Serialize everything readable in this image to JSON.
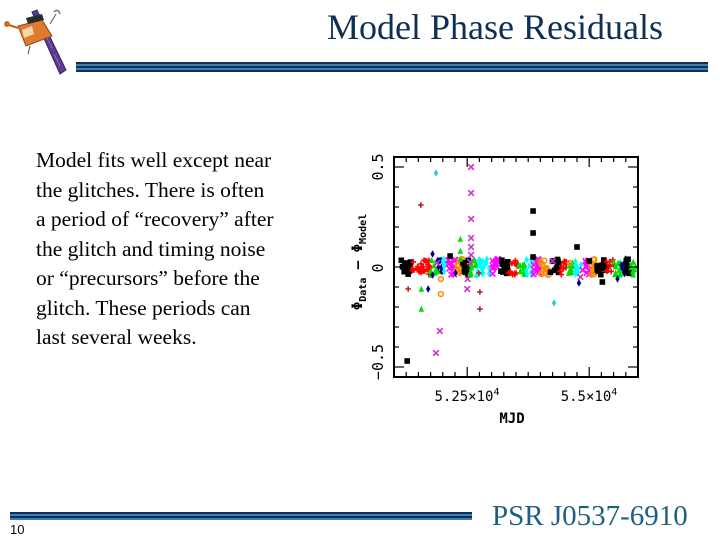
{
  "slide": {
    "title": "Model Phase Residuals",
    "logo_icon": "satellite-icon",
    "body": [
      "Model fits well except near",
      "the glitches. There is often",
      "a period of “recovery” after",
      "the glitch and timing noise",
      "or “precursors” before the",
      "glitch. These periods can",
      "last several weeks."
    ],
    "footer_title": "PSR J0537-6910",
    "page_number": "10",
    "colors": {
      "title": "#0f2f55",
      "footer_title": "#1f5f7f",
      "rule_dark": "#0f2f55",
      "rule_light": "#3a7fb5"
    }
  },
  "chart_data": {
    "type": "scatter",
    "title": "",
    "xlabel": "MJD",
    "ylabel": "Φ_Data − Φ_Model",
    "xlim": [
      51000,
      56000
    ],
    "ylim": [
      -0.55,
      0.55
    ],
    "x_ticks": [
      {
        "value": 52500,
        "label": "5.25×10^4"
      },
      {
        "value": 55000,
        "label": "5.5×10^4"
      }
    ],
    "y_ticks": [
      {
        "value": -0.5,
        "label": "−0.5"
      },
      {
        "value": 0,
        "label": "0"
      },
      {
        "value": 0.5,
        "label": "0.5"
      }
    ],
    "grid": false,
    "legend": null,
    "note": "Dense band of multi-colored residuals near 0 spanning MJD ~51150-55950; segments between glitches plotted in distinct colors/markers",
    "band": {
      "x_range": [
        51150,
        55950
      ],
      "y_center": 0.0,
      "y_spread": 0.04
    },
    "band_segments": [
      {
        "color": "#000000",
        "marker": "square",
        "x_range": [
          51150,
          51350
        ]
      },
      {
        "color": "#ff0000",
        "marker": "plus",
        "x_range": [
          51350,
          51750
        ]
      },
      {
        "color": "#00dd00",
        "marker": "triangle",
        "x_range": [
          51750,
          51900
        ]
      },
      {
        "color": "#00008b",
        "marker": "diamond",
        "x_range": [
          51900,
          52000
        ]
      },
      {
        "color": "#00ffff",
        "marker": "diamond",
        "x_range": [
          52000,
          52100
        ]
      },
      {
        "color": "#ff00ff",
        "marker": "x",
        "x_range": [
          52100,
          52250
        ]
      },
      {
        "color": "#ff8c00",
        "marker": "circle",
        "x_range": [
          52250,
          52400
        ]
      },
      {
        "color": "#000000",
        "marker": "square",
        "x_range": [
          52400,
          52550
        ]
      },
      {
        "color": "#00dd00",
        "marker": "triangle",
        "x_range": [
          52550,
          52700
        ]
      },
      {
        "color": "#00ffff",
        "marker": "diamond",
        "x_range": [
          52700,
          52950
        ]
      },
      {
        "color": "#ff00ff",
        "marker": "x",
        "x_range": [
          52950,
          53150
        ]
      },
      {
        "color": "#000000",
        "marker": "square",
        "x_range": [
          53150,
          53350
        ]
      },
      {
        "color": "#ff0000",
        "marker": "plus",
        "x_range": [
          53350,
          53550
        ]
      },
      {
        "color": "#00dd00",
        "marker": "triangle",
        "x_range": [
          53550,
          53700
        ]
      },
      {
        "color": "#00ffff",
        "marker": "diamond",
        "x_range": [
          53700,
          53850
        ]
      },
      {
        "color": "#ff00ff",
        "marker": "x",
        "x_range": [
          53850,
          54000
        ]
      },
      {
        "color": "#ff8c00",
        "marker": "circle",
        "x_range": [
          54000,
          54200
        ]
      },
      {
        "color": "#000000",
        "marker": "square",
        "x_range": [
          54200,
          54400
        ]
      },
      {
        "color": "#ff0000",
        "marker": "plus",
        "x_range": [
          54400,
          54550
        ]
      },
      {
        "color": "#00dd00",
        "marker": "triangle",
        "x_range": [
          54550,
          54700
        ]
      },
      {
        "color": "#00ffff",
        "marker": "diamond",
        "x_range": [
          54700,
          54850
        ]
      },
      {
        "color": "#ff00ff",
        "marker": "x",
        "x_range": [
          54850,
          55000
        ]
      },
      {
        "color": "#ff8c00",
        "marker": "circle",
        "x_range": [
          55000,
          55150
        ]
      },
      {
        "color": "#000000",
        "marker": "square",
        "x_range": [
          55150,
          55350
        ]
      },
      {
        "color": "#ff0000",
        "marker": "plus",
        "x_range": [
          55350,
          55500
        ]
      },
      {
        "color": "#00dd00",
        "marker": "triangle",
        "x_range": [
          55500,
          55650
        ]
      },
      {
        "color": "#00008b",
        "marker": "diamond",
        "x_range": [
          55650,
          55750
        ]
      },
      {
        "color": "#000000",
        "marker": "square",
        "x_range": [
          55750,
          55850
        ]
      },
      {
        "color": "#00dd00",
        "marker": "triangle",
        "x_range": [
          55850,
          55950
        ]
      }
    ],
    "outliers": [
      {
        "x": 51270,
        "y": -0.47,
        "color": "#000000",
        "marker": "square"
      },
      {
        "x": 51230,
        "y": -0.02,
        "color": "#000000",
        "marker": "square"
      },
      {
        "x": 51550,
        "y": 0.31,
        "color": "#b22222",
        "marker": "plus"
      },
      {
        "x": 51290,
        "y": -0.11,
        "color": "#b22222",
        "marker": "plus"
      },
      {
        "x": 51560,
        "y": -0.11,
        "color": "#00dd00",
        "marker": "triangle"
      },
      {
        "x": 51560,
        "y": -0.21,
        "color": "#00dd00",
        "marker": "triangle"
      },
      {
        "x": 51700,
        "y": -0.11,
        "color": "#00008b",
        "marker": "diamond"
      },
      {
        "x": 51790,
        "y": 0.065,
        "color": "#00008b",
        "marker": "diamond"
      },
      {
        "x": 51790,
        "y": -0.04,
        "color": "#00008b",
        "marker": "diamond"
      },
      {
        "x": 51860,
        "y": 0.47,
        "color": "#33cccc",
        "marker": "diamond"
      },
      {
        "x": 51940,
        "y": -0.32,
        "color": "#cc33cc",
        "marker": "x"
      },
      {
        "x": 51860,
        "y": -0.43,
        "color": "#cc33cc",
        "marker": "x"
      },
      {
        "x": 51880,
        "y": 0.02,
        "color": "#cc33cc",
        "marker": "x"
      },
      {
        "x": 51960,
        "y": -0.06,
        "color": "#ff8c00",
        "marker": "circle"
      },
      {
        "x": 51960,
        "y": -0.135,
        "color": "#ff8c00",
        "marker": "circle"
      },
      {
        "x": 52150,
        "y": 0.055,
        "color": "#000000",
        "marker": "square"
      },
      {
        "x": 52360,
        "y": 0.14,
        "color": "#00dd00",
        "marker": "triangle"
      },
      {
        "x": 52360,
        "y": 0.08,
        "color": "#00dd00",
        "marker": "triangle"
      },
      {
        "x": 52360,
        "y": 0.04,
        "color": "#00dd00",
        "marker": "triangle"
      },
      {
        "x": 52260,
        "y": -0.03,
        "color": "#00008b",
        "marker": "diamond"
      },
      {
        "x": 52580,
        "y": 0.5,
        "color": "#cc33cc",
        "marker": "x"
      },
      {
        "x": 52580,
        "y": 0.37,
        "color": "#cc33cc",
        "marker": "x"
      },
      {
        "x": 52580,
        "y": 0.24,
        "color": "#cc33cc",
        "marker": "x"
      },
      {
        "x": 52580,
        "y": 0.145,
        "color": "#cc33cc",
        "marker": "x"
      },
      {
        "x": 52580,
        "y": 0.1,
        "color": "#cc33cc",
        "marker": "x"
      },
      {
        "x": 52580,
        "y": 0.06,
        "color": "#cc33cc",
        "marker": "x"
      },
      {
        "x": 52560,
        "y": 0.025,
        "color": "#cc33cc",
        "marker": "x"
      },
      {
        "x": 52500,
        "y": -0.11,
        "color": "#cc33cc",
        "marker": "x"
      },
      {
        "x": 52510,
        "y": -0.06,
        "color": "#cc33cc",
        "marker": "x"
      },
      {
        "x": 52760,
        "y": -0.125,
        "color": "#b22222",
        "marker": "plus"
      },
      {
        "x": 52760,
        "y": -0.21,
        "color": "#b22222",
        "marker": "plus"
      },
      {
        "x": 52740,
        "y": -0.03,
        "color": "#b22222",
        "marker": "plus"
      },
      {
        "x": 53850,
        "y": 0.28,
        "color": "#000000",
        "marker": "square"
      },
      {
        "x": 53850,
        "y": 0.17,
        "color": "#000000",
        "marker": "square"
      },
      {
        "x": 53850,
        "y": 0.05,
        "color": "#000000",
        "marker": "square"
      },
      {
        "x": 54280,
        "y": -0.18,
        "color": "#33cccc",
        "marker": "diamond"
      },
      {
        "x": 54750,
        "y": 0.1,
        "color": "#000000",
        "marker": "square"
      },
      {
        "x": 55000,
        "y": 0.03,
        "color": "#000000",
        "marker": "square"
      },
      {
        "x": 54790,
        "y": -0.08,
        "color": "#00008b",
        "marker": "diamond"
      },
      {
        "x": 54820,
        "y": -0.05,
        "color": "#cc33cc",
        "marker": "x"
      },
      {
        "x": 55270,
        "y": -0.075,
        "color": "#000000",
        "marker": "square"
      },
      {
        "x": 55580,
        "y": -0.06,
        "color": "#00008b",
        "marker": "diamond"
      },
      {
        "x": 54250,
        "y": 0.03,
        "color": "#cc33cc",
        "marker": "x"
      },
      {
        "x": 54600,
        "y": 0.02,
        "color": "#ff8c00",
        "marker": "circle"
      }
    ]
  }
}
